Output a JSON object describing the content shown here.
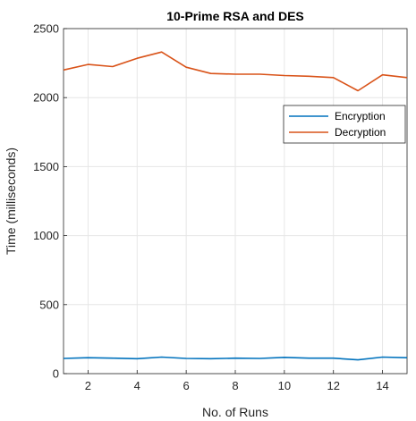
{
  "chart_data": {
    "type": "line",
    "title": "10-Prime RSA and DES",
    "xlabel": "No. of Runs",
    "ylabel": "Time (milliseconds)",
    "xlim": [
      1,
      15
    ],
    "ylim": [
      0,
      2500
    ],
    "xticks": [
      2,
      4,
      6,
      8,
      10,
      12,
      14
    ],
    "yticks": [
      0,
      500,
      1000,
      1500,
      2000,
      2500
    ],
    "grid": true,
    "legend_position": "upper-right",
    "x": [
      1,
      2,
      3,
      4,
      5,
      6,
      7,
      8,
      9,
      10,
      11,
      12,
      13,
      14,
      15
    ],
    "series": [
      {
        "name": "Encryption",
        "color": "#0072BD",
        "values": [
          110,
          115,
          112,
          108,
          120,
          110,
          108,
          112,
          110,
          118,
          112,
          112,
          100,
          120,
          115
        ]
      },
      {
        "name": "Decryption",
        "color": "#D95319",
        "values": [
          2200,
          2240,
          2225,
          2285,
          2330,
          2220,
          2175,
          2170,
          2170,
          2160,
          2155,
          2145,
          2050,
          2165,
          2145
        ]
      }
    ]
  }
}
